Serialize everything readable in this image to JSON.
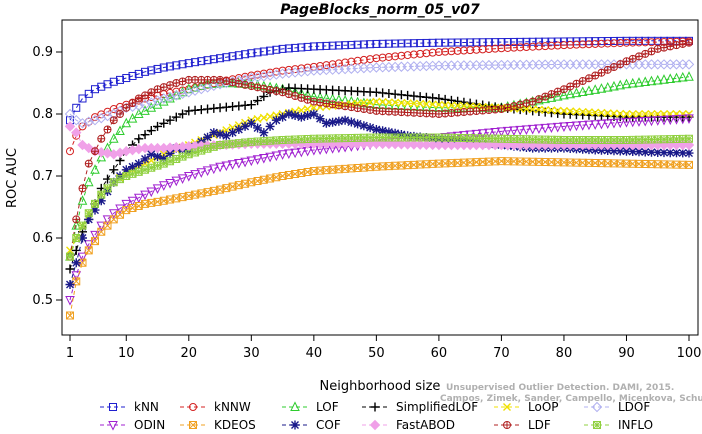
{
  "chart_data": {
    "type": "line",
    "title": "PageBlocks_norm_05_v07",
    "xlabel": "Neighborhood size",
    "ylabel": "ROC AUC",
    "xlim": [
      1,
      100
    ],
    "ylim": [
      0.45,
      0.95
    ],
    "xticks": [
      1,
      10,
      20,
      30,
      40,
      50,
      60,
      70,
      80,
      90,
      100
    ],
    "yticks": [
      0.5,
      0.6,
      0.7,
      0.8,
      0.9
    ],
    "legend_position": "bottom",
    "credit": {
      "line1": "Unsupervised Outlier Detection. DAMI, 2015.",
      "line2": "Campos, Zimek, Sander, Campello, Micenkova, Schubert, Assent, Houle"
    },
    "series": [
      {
        "name": "kNN",
        "color": "#1f1fcf",
        "marker": "square",
        "x": [
          1,
          2,
          3,
          5,
          8,
          10,
          13,
          16,
          20,
          25,
          30,
          35,
          40,
          50,
          60,
          70,
          80,
          90,
          100
        ],
        "y": [
          0.79,
          0.81,
          0.825,
          0.84,
          0.852,
          0.858,
          0.868,
          0.875,
          0.882,
          0.89,
          0.898,
          0.905,
          0.909,
          0.913,
          0.915,
          0.916,
          0.917,
          0.918,
          0.918
        ]
      },
      {
        "name": "kNNW",
        "color": "#d42020",
        "marker": "circle",
        "x": [
          1,
          2,
          3,
          5,
          8,
          10,
          13,
          16,
          20,
          25,
          30,
          35,
          40,
          50,
          60,
          70,
          80,
          90,
          100
        ],
        "y": [
          0.74,
          0.765,
          0.78,
          0.795,
          0.808,
          0.815,
          0.825,
          0.832,
          0.84,
          0.852,
          0.862,
          0.87,
          0.876,
          0.89,
          0.9,
          0.906,
          0.911,
          0.915,
          0.917
        ]
      },
      {
        "name": "LOF",
        "color": "#2ecc2e",
        "marker": "triangle-up",
        "x": [
          1,
          2,
          3,
          4,
          6,
          8,
          10,
          12,
          15,
          18,
          20,
          23,
          26,
          30,
          35,
          40,
          50,
          60,
          70,
          80,
          90,
          100
        ],
        "y": [
          0.57,
          0.62,
          0.66,
          0.69,
          0.73,
          0.76,
          0.785,
          0.8,
          0.815,
          0.83,
          0.84,
          0.848,
          0.85,
          0.848,
          0.84,
          0.828,
          0.815,
          0.81,
          0.81,
          0.83,
          0.848,
          0.86
        ]
      },
      {
        "name": "SimplifiedLOF",
        "color": "#000000",
        "marker": "plus",
        "x": [
          1,
          2,
          3,
          4,
          6,
          8,
          10,
          12,
          15,
          18,
          20,
          25,
          30,
          33,
          36,
          40,
          50,
          60,
          70,
          80,
          90,
          100
        ],
        "y": [
          0.55,
          0.58,
          0.61,
          0.63,
          0.68,
          0.71,
          0.74,
          0.76,
          0.78,
          0.795,
          0.805,
          0.81,
          0.815,
          0.835,
          0.842,
          0.84,
          0.835,
          0.825,
          0.81,
          0.8,
          0.795,
          0.795
        ]
      },
      {
        "name": "LoOP",
        "color": "#f0e000",
        "marker": "x",
        "x": [
          1,
          2,
          3,
          4,
          6,
          8,
          10,
          13,
          16,
          20,
          25,
          30,
          35,
          40,
          50,
          60,
          70,
          80,
          90,
          100
        ],
        "y": [
          0.58,
          0.6,
          0.62,
          0.64,
          0.67,
          0.69,
          0.705,
          0.72,
          0.735,
          0.75,
          0.77,
          0.79,
          0.8,
          0.81,
          0.82,
          0.815,
          0.81,
          0.805,
          0.8,
          0.8
        ]
      },
      {
        "name": "LDOF",
        "color": "#b0b0f0",
        "marker": "diamond",
        "x": [
          1,
          2,
          3,
          5,
          8,
          10,
          13,
          16,
          20,
          25,
          30,
          35,
          40,
          50,
          60,
          70,
          80,
          90,
          100
        ],
        "y": [
          0.8,
          0.79,
          0.785,
          0.79,
          0.8,
          0.81,
          0.815,
          0.825,
          0.835,
          0.848,
          0.858,
          0.865,
          0.87,
          0.875,
          0.878,
          0.879,
          0.88,
          0.88,
          0.88
        ]
      },
      {
        "name": "ODIN",
        "color": "#a020d0",
        "marker": "triangle-down",
        "x": [
          1,
          2,
          3,
          4,
          6,
          8,
          10,
          13,
          16,
          20,
          25,
          30,
          35,
          40,
          50,
          60,
          70,
          80,
          90,
          100
        ],
        "y": [
          0.5,
          0.54,
          0.57,
          0.59,
          0.62,
          0.64,
          0.655,
          0.67,
          0.685,
          0.7,
          0.715,
          0.725,
          0.735,
          0.742,
          0.752,
          0.762,
          0.772,
          0.78,
          0.787,
          0.793
        ]
      },
      {
        "name": "KDEOS",
        "color": "#f0a020",
        "marker": "square-x",
        "x": [
          1,
          2,
          3,
          4,
          6,
          8,
          10,
          13,
          16,
          20,
          25,
          30,
          35,
          40,
          50,
          60,
          70,
          80,
          90,
          100
        ],
        "y": [
          0.475,
          0.53,
          0.56,
          0.58,
          0.61,
          0.63,
          0.645,
          0.655,
          0.66,
          0.668,
          0.678,
          0.69,
          0.7,
          0.708,
          0.715,
          0.72,
          0.724,
          0.722,
          0.72,
          0.718
        ]
      },
      {
        "name": "COF",
        "color": "#1a1a8a",
        "marker": "asterisk",
        "x": [
          1,
          2,
          3,
          4,
          6,
          8,
          10,
          12,
          14,
          16,
          18,
          20,
          22,
          24,
          26,
          28,
          30,
          32,
          34,
          36,
          38,
          40,
          42,
          45,
          50,
          55,
          60,
          65,
          70,
          75,
          80,
          85,
          90,
          95,
          100
        ],
        "y": [
          0.525,
          0.56,
          0.6,
          0.63,
          0.66,
          0.69,
          0.71,
          0.72,
          0.735,
          0.728,
          0.745,
          0.74,
          0.755,
          0.77,
          0.765,
          0.775,
          0.785,
          0.77,
          0.79,
          0.8,
          0.795,
          0.8,
          0.785,
          0.79,
          0.775,
          0.765,
          0.76,
          0.755,
          0.75,
          0.745,
          0.745,
          0.742,
          0.74,
          0.738,
          0.737
        ]
      },
      {
        "name": "FastABOD",
        "color": "#f0a0e8",
        "marker": "diamond-filled",
        "x": [
          1,
          2,
          3,
          5,
          8,
          10,
          13,
          16,
          20,
          25,
          30,
          35,
          40,
          50,
          60,
          70,
          80,
          90,
          100
        ],
        "y": [
          0.78,
          0.77,
          0.75,
          0.74,
          0.735,
          0.74,
          0.745,
          0.745,
          0.748,
          0.75,
          0.752,
          0.752,
          0.752,
          0.752,
          0.75,
          0.75,
          0.75,
          0.75,
          0.75
        ]
      },
      {
        "name": "LDF",
        "color": "#b02020",
        "marker": "circle-plus",
        "x": [
          1,
          2,
          3,
          4,
          6,
          8,
          10,
          12,
          15,
          18,
          20,
          25,
          30,
          35,
          40,
          50,
          60,
          70,
          75,
          80,
          85,
          90,
          95,
          100
        ],
        "y": [
          0.57,
          0.63,
          0.68,
          0.72,
          0.76,
          0.79,
          0.81,
          0.825,
          0.84,
          0.85,
          0.855,
          0.855,
          0.845,
          0.835,
          0.82,
          0.805,
          0.8,
          0.808,
          0.82,
          0.84,
          0.862,
          0.885,
          0.905,
          0.915
        ]
      },
      {
        "name": "INFLO",
        "color": "#90d040",
        "marker": "square-star",
        "x": [
          1,
          2,
          3,
          4,
          6,
          8,
          10,
          13,
          16,
          20,
          25,
          30,
          35,
          40,
          50,
          60,
          70,
          80,
          90,
          100
        ],
        "y": [
          0.57,
          0.6,
          0.62,
          0.64,
          0.67,
          0.69,
          0.7,
          0.71,
          0.72,
          0.735,
          0.75,
          0.755,
          0.758,
          0.76,
          0.762,
          0.762,
          0.76,
          0.758,
          0.758,
          0.76
        ]
      }
    ]
  }
}
